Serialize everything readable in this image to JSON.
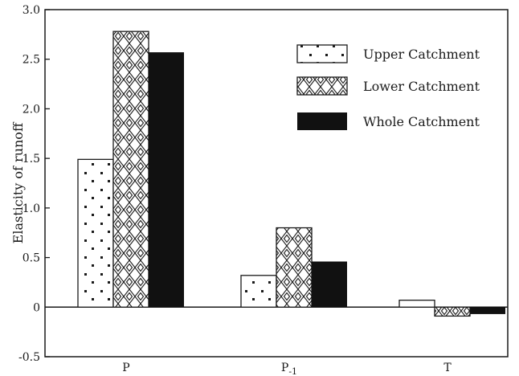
{
  "chart_data": {
    "type": "bar",
    "title": "",
    "xlabel": "",
    "ylabel": "Elasticity of runoff",
    "ylim": [
      -0.5,
      3.0
    ],
    "yticks": [
      "3.0",
      "2.5",
      "2.0",
      "1.5",
      "1.0",
      "0.5",
      "0",
      "-0.5"
    ],
    "ytick_values": [
      3.0,
      2.5,
      2.0,
      1.5,
      1.0,
      0.5,
      0,
      -0.5
    ],
    "categories": [
      "P",
      "P",
      "T"
    ],
    "category_subscripts": [
      "",
      "-1",
      ""
    ],
    "legend_position": "top-right",
    "grid": false,
    "series": [
      {
        "name": "Upper Catchment",
        "pattern": "dots",
        "values": [
          1.49,
          0.32,
          0.07
        ]
      },
      {
        "name": "Lower Catchment",
        "pattern": "diamonds",
        "values": [
          2.78,
          0.8,
          -0.09
        ]
      },
      {
        "name": "Whole Catchment",
        "pattern": "solid",
        "values": [
          2.57,
          0.46,
          -0.07
        ]
      }
    ]
  }
}
